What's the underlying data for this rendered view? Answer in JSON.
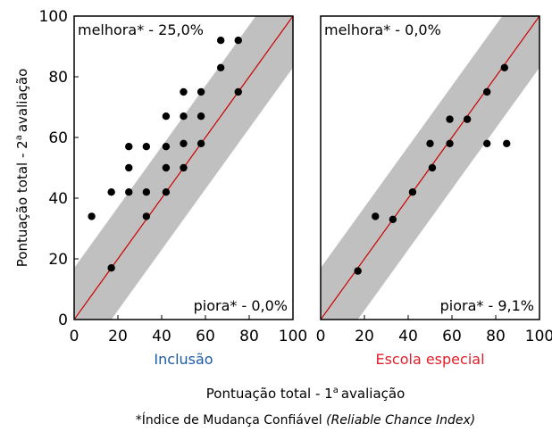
{
  "chart_data": [
    {
      "type": "scatter",
      "panel_label": "Inclusão",
      "panel_label_color": "#1f5aa6",
      "improve_label": "melhora* - 25,0%",
      "worsen_label": "piora* - 0,0%",
      "xlim": [
        0,
        100
      ],
      "ylim": [
        0,
        100
      ],
      "xticks": [
        "0",
        "20",
        "40",
        "60",
        "80",
        "100"
      ],
      "yticks": [
        "0",
        "20",
        "40",
        "60",
        "80",
        "100"
      ],
      "identity_line_color": "#cc0000",
      "band_color": "#c0c0c0",
      "band_half_width": 17,
      "points": [
        {
          "x": 8,
          "y": 34
        },
        {
          "x": 17,
          "y": 17
        },
        {
          "x": 17,
          "y": 42
        },
        {
          "x": 25,
          "y": 42
        },
        {
          "x": 25,
          "y": 50
        },
        {
          "x": 25,
          "y": 57
        },
        {
          "x": 33,
          "y": 34
        },
        {
          "x": 33,
          "y": 42
        },
        {
          "x": 33,
          "y": 57
        },
        {
          "x": 42,
          "y": 42
        },
        {
          "x": 42,
          "y": 50
        },
        {
          "x": 42,
          "y": 57
        },
        {
          "x": 42,
          "y": 67
        },
        {
          "x": 50,
          "y": 50
        },
        {
          "x": 50,
          "y": 58
        },
        {
          "x": 50,
          "y": 67
        },
        {
          "x": 50,
          "y": 75
        },
        {
          "x": 58,
          "y": 58
        },
        {
          "x": 58,
          "y": 67
        },
        {
          "x": 58,
          "y": 75
        },
        {
          "x": 67,
          "y": 83
        },
        {
          "x": 67,
          "y": 92
        },
        {
          "x": 75,
          "y": 75
        },
        {
          "x": 75,
          "y": 92
        }
      ]
    },
    {
      "type": "scatter",
      "panel_label": "Escola especial",
      "panel_label_color": "#e0202a",
      "improve_label": "melhora* - 0,0%",
      "worsen_label": "piora* - 9,1%",
      "xlim": [
        0,
        100
      ],
      "ylim": [
        0,
        100
      ],
      "xticks": [
        "0",
        "20",
        "40",
        "60",
        "80",
        "100"
      ],
      "yticks": [],
      "identity_line_color": "#cc0000",
      "band_color": "#c0c0c0",
      "band_half_width": 17,
      "points": [
        {
          "x": 17,
          "y": 16
        },
        {
          "x": 25,
          "y": 34
        },
        {
          "x": 33,
          "y": 33
        },
        {
          "x": 42,
          "y": 42
        },
        {
          "x": 50,
          "y": 58
        },
        {
          "x": 51,
          "y": 50
        },
        {
          "x": 59,
          "y": 58
        },
        {
          "x": 59,
          "y": 66
        },
        {
          "x": 67,
          "y": 66
        },
        {
          "x": 76,
          "y": 58
        },
        {
          "x": 76,
          "y": 75
        },
        {
          "x": 84,
          "y": 83
        },
        {
          "x": 85,
          "y": 58
        }
      ]
    }
  ],
  "ylabel_main": "Pontuação total - 2",
  "ylabel_sup": "a",
  "ylabel_rest": "avaliação",
  "xlabel_main": "Pontuação total - 1",
  "xlabel_sup": "a",
  "xlabel_rest": "avaliação",
  "footnote_plain": "*Índice de Mudança Confiável ",
  "footnote_italic": "(Reliable Chance Index)"
}
